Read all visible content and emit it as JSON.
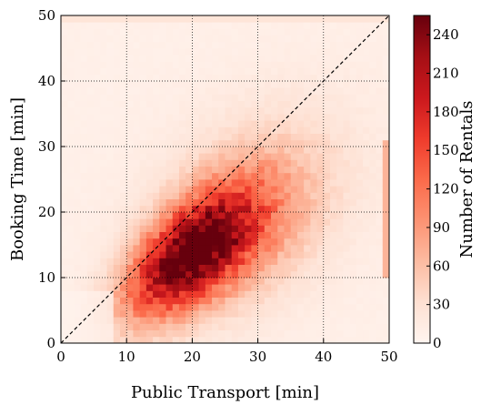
{
  "chart_data": {
    "type": "heatmap",
    "title": "",
    "xlabel": "Public Transport [min]",
    "ylabel": "Booking Time [min]",
    "xlim": [
      0,
      50
    ],
    "ylim": [
      0,
      50
    ],
    "x_ticks": [
      0,
      10,
      20,
      30,
      40,
      50
    ],
    "y_ticks": [
      0,
      10,
      20,
      30,
      40,
      50
    ],
    "grid": true,
    "bin_width_min": 1,
    "density_model": {
      "description": "Approximate bivariate density of rental counts per 1-minute bin",
      "peak_center": [
        19,
        13
      ],
      "peak_value": 220,
      "spread_along_diagonal": 8,
      "spread_across_diagonal": 4,
      "secondary_center": [
        26,
        17
      ],
      "secondary_value": 150,
      "background_value": 8,
      "edge_accumulation": {
        "x": 50,
        "y_range": [
          10,
          30
        ],
        "value": 70
      },
      "top_edge_accumulation": {
        "y": 50,
        "value": 25
      }
    },
    "reference_line": {
      "from": [
        0,
        0
      ],
      "to": [
        50,
        50
      ],
      "style": "dashed"
    },
    "colorbar": {
      "label": "Number of Rentals",
      "min": 0,
      "max": 255,
      "ticks": [
        0,
        30,
        60,
        90,
        120,
        150,
        180,
        210,
        240
      ],
      "colormap": "Reds",
      "colors": [
        "#fff5f0",
        "#fee0d2",
        "#fcbba1",
        "#fc9272",
        "#fb6a4a",
        "#ef3b2c",
        "#cb181d",
        "#a50f15",
        "#67000d"
      ]
    }
  }
}
